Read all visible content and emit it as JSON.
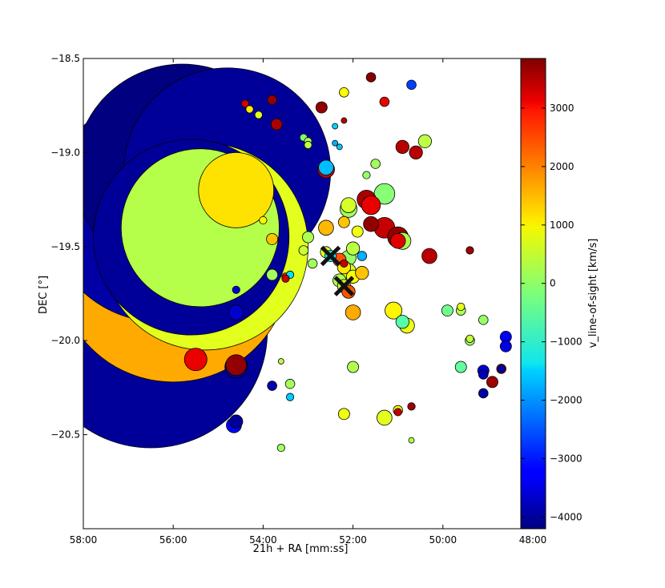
{
  "chart_data": {
    "type": "scatter",
    "xlabel": "21h + RA [mm:ss]",
    "ylabel": "DEC [°]",
    "colorbar_label": "v_line-of-sight [km/s]",
    "xlim": [
      58.0,
      48.0
    ],
    "ylim": [
      -21.0,
      -18.5
    ],
    "x_ticks": [
      58,
      56,
      54,
      52,
      50,
      48
    ],
    "x_tick_labels": [
      "58:00",
      "56:00",
      "54:00",
      "52:00",
      "50:00",
      "48:00"
    ],
    "y_ticks": [
      -18.5,
      -19.0,
      -19.5,
      -20.0,
      -20.5
    ],
    "y_tick_labels": [
      "−18.5",
      "−19.0",
      "−19.5",
      "−20.0",
      "−20.5"
    ],
    "color_range": [
      -4200,
      3850
    ],
    "colorbar_ticks": [
      3000,
      2000,
      1000,
      0,
      -1000,
      -2000,
      -3000,
      -4000
    ],
    "colorbar_tick_labels": [
      "3000",
      "2000",
      "1000",
      "0",
      "−1000",
      "−2000",
      "−3000",
      "−4000"
    ],
    "colormap": "jet",
    "marker": "circle; area encodes object size",
    "points": [
      {
        "ra": 56.5,
        "dec": -19.95,
        "r_deg": 0.62,
        "v": -4000
      },
      {
        "ra": 56.7,
        "dec": -19.55,
        "r_deg": 0.65,
        "v": -3600
      },
      {
        "ra": 56.3,
        "dec": -19.3,
        "r_deg": 0.6,
        "v": -3900
      },
      {
        "ra": 55.8,
        "dec": -19.1,
        "r_deg": 0.57,
        "v": -4200
      },
      {
        "ra": 54.8,
        "dec": -19.1,
        "r_deg": 0.55,
        "v": -4000
      },
      {
        "ra": 56.0,
        "dec": -19.6,
        "r_deg": 0.62,
        "v": 1500
      },
      {
        "ra": 55.3,
        "dec": -19.5,
        "r_deg": 0.55,
        "v": 600
      },
      {
        "ra": 55.6,
        "dec": -19.45,
        "r_deg": 0.52,
        "v": -4000
      },
      {
        "ra": 55.4,
        "dec": -19.4,
        "r_deg": 0.42,
        "v": 250
      },
      {
        "ra": 54.6,
        "dec": -19.2,
        "r_deg": 0.2,
        "v": 1050
      },
      {
        "ra": 54.6,
        "dec": -19.85,
        "r_deg": 0.04,
        "v": -3600
      },
      {
        "ra": 54.6,
        "dec": -19.73,
        "r_deg": 0.02,
        "v": -3600
      },
      {
        "ra": 54.0,
        "dec": -19.36,
        "r_deg": 0.02,
        "v": 900
      },
      {
        "ra": 53.8,
        "dec": -19.46,
        "r_deg": 0.03,
        "v": 1300
      },
      {
        "ra": 55.5,
        "dec": -20.1,
        "r_deg": 0.06,
        "v": 3000
      },
      {
        "ra": 54.6,
        "dec": -20.14,
        "r_deg": 0.06,
        "v": -4000
      },
      {
        "ra": 54.6,
        "dec": -20.13,
        "r_deg": 0.055,
        "v": 3700
      },
      {
        "ra": 54.65,
        "dec": -20.45,
        "r_deg": 0.04,
        "v": -3200
      },
      {
        "ra": 54.6,
        "dec": -20.43,
        "r_deg": 0.035,
        "v": -4000
      },
      {
        "ra": 54.4,
        "dec": -18.74,
        "r_deg": 0.02,
        "v": 3200
      },
      {
        "ra": 54.3,
        "dec": -18.77,
        "r_deg": 0.02,
        "v": 1000
      },
      {
        "ra": 54.1,
        "dec": -18.8,
        "r_deg": 0.02,
        "v": 600
      },
      {
        "ra": 53.8,
        "dec": -18.72,
        "r_deg": 0.025,
        "v": 3700
      },
      {
        "ra": 53.7,
        "dec": -18.85,
        "r_deg": 0.03,
        "v": 3500
      },
      {
        "ra": 53.1,
        "dec": -18.92,
        "r_deg": 0.02,
        "v": -200
      },
      {
        "ra": 53.0,
        "dec": -18.94,
        "r_deg": 0.02,
        "v": 200
      },
      {
        "ra": 53.0,
        "dec": -18.96,
        "r_deg": 0.02,
        "v": 300
      },
      {
        "ra": 52.7,
        "dec": -18.76,
        "r_deg": 0.03,
        "v": 3700
      },
      {
        "ra": 52.6,
        "dec": -19.08,
        "r_deg": 0.04,
        "v": -1700
      },
      {
        "ra": 52.6,
        "dec": -19.09,
        "r_deg": 0.045,
        "v": 3300
      },
      {
        "ra": 52.4,
        "dec": -18.86,
        "r_deg": 0.015,
        "v": -1500
      },
      {
        "ra": 52.4,
        "dec": -18.95,
        "r_deg": 0.015,
        "v": -1800
      },
      {
        "ra": 52.3,
        "dec": -18.97,
        "r_deg": 0.015,
        "v": -1600
      },
      {
        "ra": 52.2,
        "dec": -18.68,
        "r_deg": 0.025,
        "v": 800
      },
      {
        "ra": 52.2,
        "dec": -18.83,
        "r_deg": 0.015,
        "v": 3400
      },
      {
        "ra": 51.6,
        "dec": -18.6,
        "r_deg": 0.025,
        "v": 3800
      },
      {
        "ra": 51.3,
        "dec": -18.73,
        "r_deg": 0.025,
        "v": 3000
      },
      {
        "ra": 50.7,
        "dec": -18.64,
        "r_deg": 0.025,
        "v": -2700
      },
      {
        "ra": 50.9,
        "dec": -18.97,
        "r_deg": 0.035,
        "v": 3400
      },
      {
        "ra": 50.6,
        "dec": -19.0,
        "r_deg": 0.035,
        "v": 3400
      },
      {
        "ra": 50.4,
        "dec": -18.94,
        "r_deg": 0.035,
        "v": 300
      },
      {
        "ra": 51.5,
        "dec": -19.06,
        "r_deg": 0.025,
        "v": 100
      },
      {
        "ra": 51.7,
        "dec": -19.12,
        "r_deg": 0.02,
        "v": 0
      },
      {
        "ra": 51.3,
        "dec": -19.22,
        "r_deg": 0.055,
        "v": -100
      },
      {
        "ra": 51.7,
        "dec": -19.25,
        "r_deg": 0.05,
        "v": 3500
      },
      {
        "ra": 51.6,
        "dec": -19.28,
        "r_deg": 0.05,
        "v": 3000
      },
      {
        "ra": 52.1,
        "dec": -19.28,
        "r_deg": 0.04,
        "v": 500
      },
      {
        "ra": 52.1,
        "dec": -19.3,
        "r_deg": 0.045,
        "v": 100
      },
      {
        "ra": 52.6,
        "dec": -19.4,
        "r_deg": 0.04,
        "v": 1400
      },
      {
        "ra": 52.2,
        "dec": -19.37,
        "r_deg": 0.03,
        "v": 1300
      },
      {
        "ra": 51.9,
        "dec": -19.42,
        "r_deg": 0.03,
        "v": 700
      },
      {
        "ra": 51.6,
        "dec": -19.38,
        "r_deg": 0.04,
        "v": 3700
      },
      {
        "ra": 51.3,
        "dec": -19.4,
        "r_deg": 0.055,
        "v": 3300
      },
      {
        "ra": 51.0,
        "dec": -19.45,
        "r_deg": 0.055,
        "v": 3700
      },
      {
        "ra": 51.0,
        "dec": -19.47,
        "r_deg": 0.04,
        "v": 3100
      },
      {
        "ra": 50.9,
        "dec": -19.47,
        "r_deg": 0.045,
        "v": 200
      },
      {
        "ra": 50.3,
        "dec": -19.55,
        "r_deg": 0.04,
        "v": 3400
      },
      {
        "ra": 49.4,
        "dec": -19.52,
        "r_deg": 0.02,
        "v": 3600
      },
      {
        "ra": 53.0,
        "dec": -19.45,
        "r_deg": 0.03,
        "v": 200
      },
      {
        "ra": 53.1,
        "dec": -19.52,
        "r_deg": 0.025,
        "v": 400
      },
      {
        "ra": 52.9,
        "dec": -19.59,
        "r_deg": 0.025,
        "v": 100
      },
      {
        "ra": 52.6,
        "dec": -19.53,
        "r_deg": 0.03,
        "v": 600
      },
      {
        "ra": 52.5,
        "dec": -19.55,
        "r_deg": 0.03,
        "v": -1200
      },
      {
        "ra": 52.3,
        "dec": -19.57,
        "r_deg": 0.035,
        "v": 2200
      },
      {
        "ra": 52.1,
        "dec": -19.56,
        "r_deg": 0.04,
        "v": 0
      },
      {
        "ra": 52.0,
        "dec": -19.51,
        "r_deg": 0.035,
        "v": 300
      },
      {
        "ra": 52.2,
        "dec": -19.61,
        "r_deg": 0.035,
        "v": 1000
      },
      {
        "ra": 52.1,
        "dec": -19.63,
        "r_deg": 0.04,
        "v": 500
      },
      {
        "ra": 52.0,
        "dec": -19.66,
        "r_deg": 0.035,
        "v": 800
      },
      {
        "ra": 51.8,
        "dec": -19.64,
        "r_deg": 0.035,
        "v": 1300
      },
      {
        "ra": 51.8,
        "dec": -19.55,
        "r_deg": 0.025,
        "v": -1800
      },
      {
        "ra": 52.3,
        "dec": -19.68,
        "r_deg": 0.035,
        "v": 200
      },
      {
        "ra": 52.2,
        "dec": -19.71,
        "r_deg": 0.035,
        "v": 400
      },
      {
        "ra": 52.1,
        "dec": -19.74,
        "r_deg": 0.035,
        "v": 2200
      },
      {
        "ra": 52.0,
        "dec": -19.85,
        "r_deg": 0.04,
        "v": 1500
      },
      {
        "ra": 52.2,
        "dec": -19.59,
        "r_deg": 0.02,
        "v": 3300
      },
      {
        "ra": 53.8,
        "dec": -19.65,
        "r_deg": 0.03,
        "v": 100
      },
      {
        "ra": 53.5,
        "dec": -19.66,
        "r_deg": 0.02,
        "v": 2400
      },
      {
        "ra": 53.4,
        "dec": -19.65,
        "r_deg": 0.02,
        "v": -1400
      },
      {
        "ra": 53.5,
        "dec": -19.67,
        "r_deg": 0.02,
        "v": 3300
      },
      {
        "ra": 51.1,
        "dec": -19.84,
        "r_deg": 0.045,
        "v": 900
      },
      {
        "ra": 50.9,
        "dec": -19.9,
        "r_deg": 0.035,
        "v": -500
      },
      {
        "ra": 50.8,
        "dec": -19.92,
        "r_deg": 0.04,
        "v": 700
      },
      {
        "ra": 49.9,
        "dec": -19.84,
        "r_deg": 0.03,
        "v": -300
      },
      {
        "ra": 49.6,
        "dec": -19.82,
        "r_deg": 0.02,
        "v": 600
      },
      {
        "ra": 49.6,
        "dec": -19.84,
        "r_deg": 0.025,
        "v": 200
      },
      {
        "ra": 49.1,
        "dec": -19.89,
        "r_deg": 0.025,
        "v": 0
      },
      {
        "ra": 49.4,
        "dec": -19.99,
        "r_deg": 0.02,
        "v": 400
      },
      {
        "ra": 49.4,
        "dec": -20.0,
        "r_deg": 0.025,
        "v": 0
      },
      {
        "ra": 49.6,
        "dec": -20.14,
        "r_deg": 0.03,
        "v": -400
      },
      {
        "ra": 48.6,
        "dec": -19.98,
        "r_deg": 0.03,
        "v": -3200
      },
      {
        "ra": 48.6,
        "dec": -20.03,
        "r_deg": 0.03,
        "v": -3400
      },
      {
        "ra": 49.1,
        "dec": -20.16,
        "r_deg": 0.03,
        "v": -3500
      },
      {
        "ra": 49.1,
        "dec": -20.18,
        "r_deg": 0.025,
        "v": -3800
      },
      {
        "ra": 48.7,
        "dec": -20.15,
        "r_deg": 0.025,
        "v": 3400
      },
      {
        "ra": 48.7,
        "dec": -20.15,
        "r_deg": 0.02,
        "v": -3800
      },
      {
        "ra": 48.9,
        "dec": -20.22,
        "r_deg": 0.03,
        "v": 3600
      },
      {
        "ra": 49.1,
        "dec": -20.28,
        "r_deg": 0.025,
        "v": -3900
      },
      {
        "ra": 52.0,
        "dec": -20.14,
        "r_deg": 0.03,
        "v": 200
      },
      {
        "ra": 53.6,
        "dec": -20.11,
        "r_deg": 0.015,
        "v": 300
      },
      {
        "ra": 53.4,
        "dec": -20.23,
        "r_deg": 0.025,
        "v": 100
      },
      {
        "ra": 53.8,
        "dec": -20.24,
        "r_deg": 0.025,
        "v": -3800
      },
      {
        "ra": 53.4,
        "dec": -20.3,
        "r_deg": 0.02,
        "v": -1600
      },
      {
        "ra": 52.2,
        "dec": -20.39,
        "r_deg": 0.03,
        "v": 700
      },
      {
        "ra": 51.3,
        "dec": -20.41,
        "r_deg": 0.04,
        "v": 600
      },
      {
        "ra": 51.0,
        "dec": -20.37,
        "r_deg": 0.025,
        "v": 700
      },
      {
        "ra": 51.0,
        "dec": -20.38,
        "r_deg": 0.02,
        "v": 3300
      },
      {
        "ra": 50.7,
        "dec": -20.35,
        "r_deg": 0.02,
        "v": 3600
      },
      {
        "ra": 50.7,
        "dec": -20.53,
        "r_deg": 0.015,
        "v": 200
      },
      {
        "ra": 53.6,
        "dec": -20.57,
        "r_deg": 0.02,
        "v": 100
      }
    ],
    "markers_x": [
      {
        "ra": 52.5,
        "dec": -19.55
      },
      {
        "ra": 52.2,
        "dec": -19.71
      }
    ]
  }
}
